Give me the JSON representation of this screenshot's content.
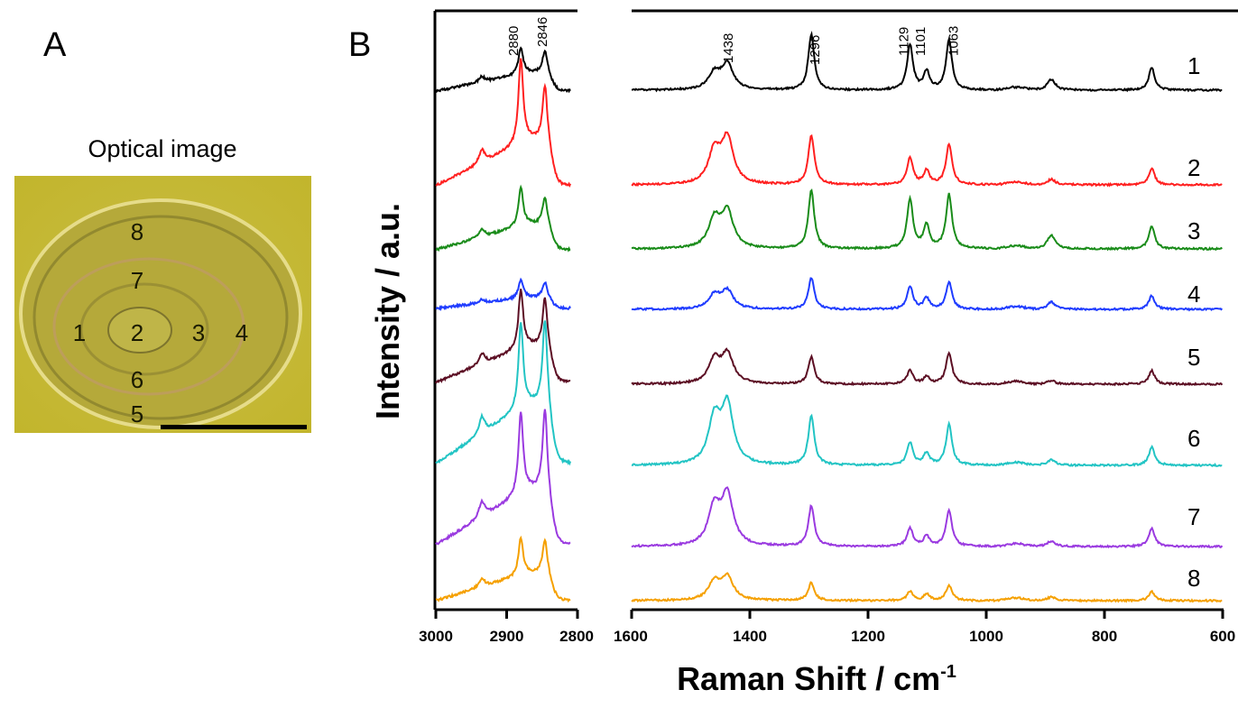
{
  "panel_a": {
    "label": "A",
    "title": "Optical image",
    "point_labels": [
      "1",
      "2",
      "3",
      "4",
      "5",
      "6",
      "7",
      "8"
    ]
  },
  "panel_b": {
    "label": "B"
  },
  "chart_data": {
    "type": "line",
    "xlabel": "Raman Shift / cm",
    "xlabel_superscript": "-1",
    "ylabel": "Intensity / a.u.",
    "x_axis_reversed": true,
    "segments": [
      {
        "xlim": [
          3000,
          2800
        ],
        "ticks": [
          "3000",
          "2900",
          "2800"
        ],
        "tick_values": [
          3000,
          2900,
          2800
        ]
      },
      {
        "xlim": [
          1600,
          600
        ],
        "ticks": [
          "1600",
          "1400",
          "1200",
          "1000",
          "800",
          "600"
        ],
        "tick_values": [
          1600,
          1400,
          1200,
          1000,
          800,
          600
        ]
      }
    ],
    "peak_annotations": [
      "2880",
      "2846",
      "1438",
      "1296",
      "1129",
      "1101",
      "1063"
    ],
    "grid": false,
    "stacked": true,
    "series": [
      {
        "name": "1",
        "color": "#000000",
        "ch": {
          "2880": 4.0,
          "2846": 3.5,
          "ramp": 2.0
        },
        "fp": {
          "1460": 1.8,
          "1438": 2.8,
          "1296": 6.2,
          "1129": 5.0,
          "1101": 2.0,
          "1063": 5.5,
          "890": 1.2,
          "720": 2.5
        }
      },
      {
        "name": "2",
        "color": "#ff2020",
        "ch": {
          "2880": 12.5,
          "2846": 8.5,
          "ramp": 5.0
        },
        "fp": {
          "1460": 3.6,
          "1438": 5.0,
          "1296": 5.5,
          "1129": 3.0,
          "1101": 1.5,
          "1063": 4.5,
          "890": 0.6,
          "720": 1.8
        }
      },
      {
        "name": "3",
        "color": "#1a8c1a",
        "ch": {
          "2880": 5.7,
          "2846": 4.3,
          "ramp": 2.8
        },
        "fp": {
          "1460": 3.2,
          "1438": 4.0,
          "1296": 6.5,
          "1129": 5.5,
          "1101": 2.5,
          "1063": 6.0,
          "890": 1.5,
          "720": 2.5
        }
      },
      {
        "name": "4",
        "color": "#1f3cff",
        "ch": {
          "2880": 2.8,
          "2846": 2.4,
          "ramp": 1.2
        },
        "fp": {
          "1460": 1.5,
          "1438": 2.0,
          "1296": 3.5,
          "1129": 2.5,
          "1101": 1.2,
          "1063": 3.0,
          "890": 0.8,
          "720": 1.5
        }
      },
      {
        "name": "5",
        "color": "#5c0f24",
        "ch": {
          "2880": 8.7,
          "2846": 7.5,
          "ramp": 4.0
        },
        "fp": {
          "1460": 2.6,
          "1438": 3.2,
          "1296": 3.0,
          "1129": 1.5,
          "1101": 0.8,
          "1063": 3.5,
          "890": 0.4,
          "720": 1.5
        }
      },
      {
        "name": "6",
        "color": "#22c4c4",
        "ch": {
          "2880": 12.7,
          "2846": 13.2,
          "ramp": 6.5
        },
        "fp": {
          "1460": 5.0,
          "1438": 6.5,
          "1296": 5.5,
          "1129": 2.5,
          "1101": 1.3,
          "1063": 4.5,
          "890": 0.6,
          "720": 2.0
        }
      },
      {
        "name": "7",
        "color": "#9a3ae0",
        "ch": {
          "2880": 12.0,
          "2846": 12.7,
          "ramp": 6.0
        },
        "fp": {
          "1460": 4.2,
          "1438": 5.5,
          "1296": 4.5,
          "1129": 2.0,
          "1101": 1.1,
          "1063": 4.0,
          "890": 0.6,
          "720": 2.0
        }
      },
      {
        "name": "8",
        "color": "#f5a000",
        "ch": {
          "2880": 5.5,
          "2846": 5.3,
          "ramp": 3.0
        },
        "fp": {
          "1460": 2.0,
          "1438": 2.5,
          "1296": 2.0,
          "1129": 1.0,
          "1101": 0.7,
          "1063": 1.7,
          "890": 0.4,
          "720": 1.0
        }
      }
    ]
  }
}
